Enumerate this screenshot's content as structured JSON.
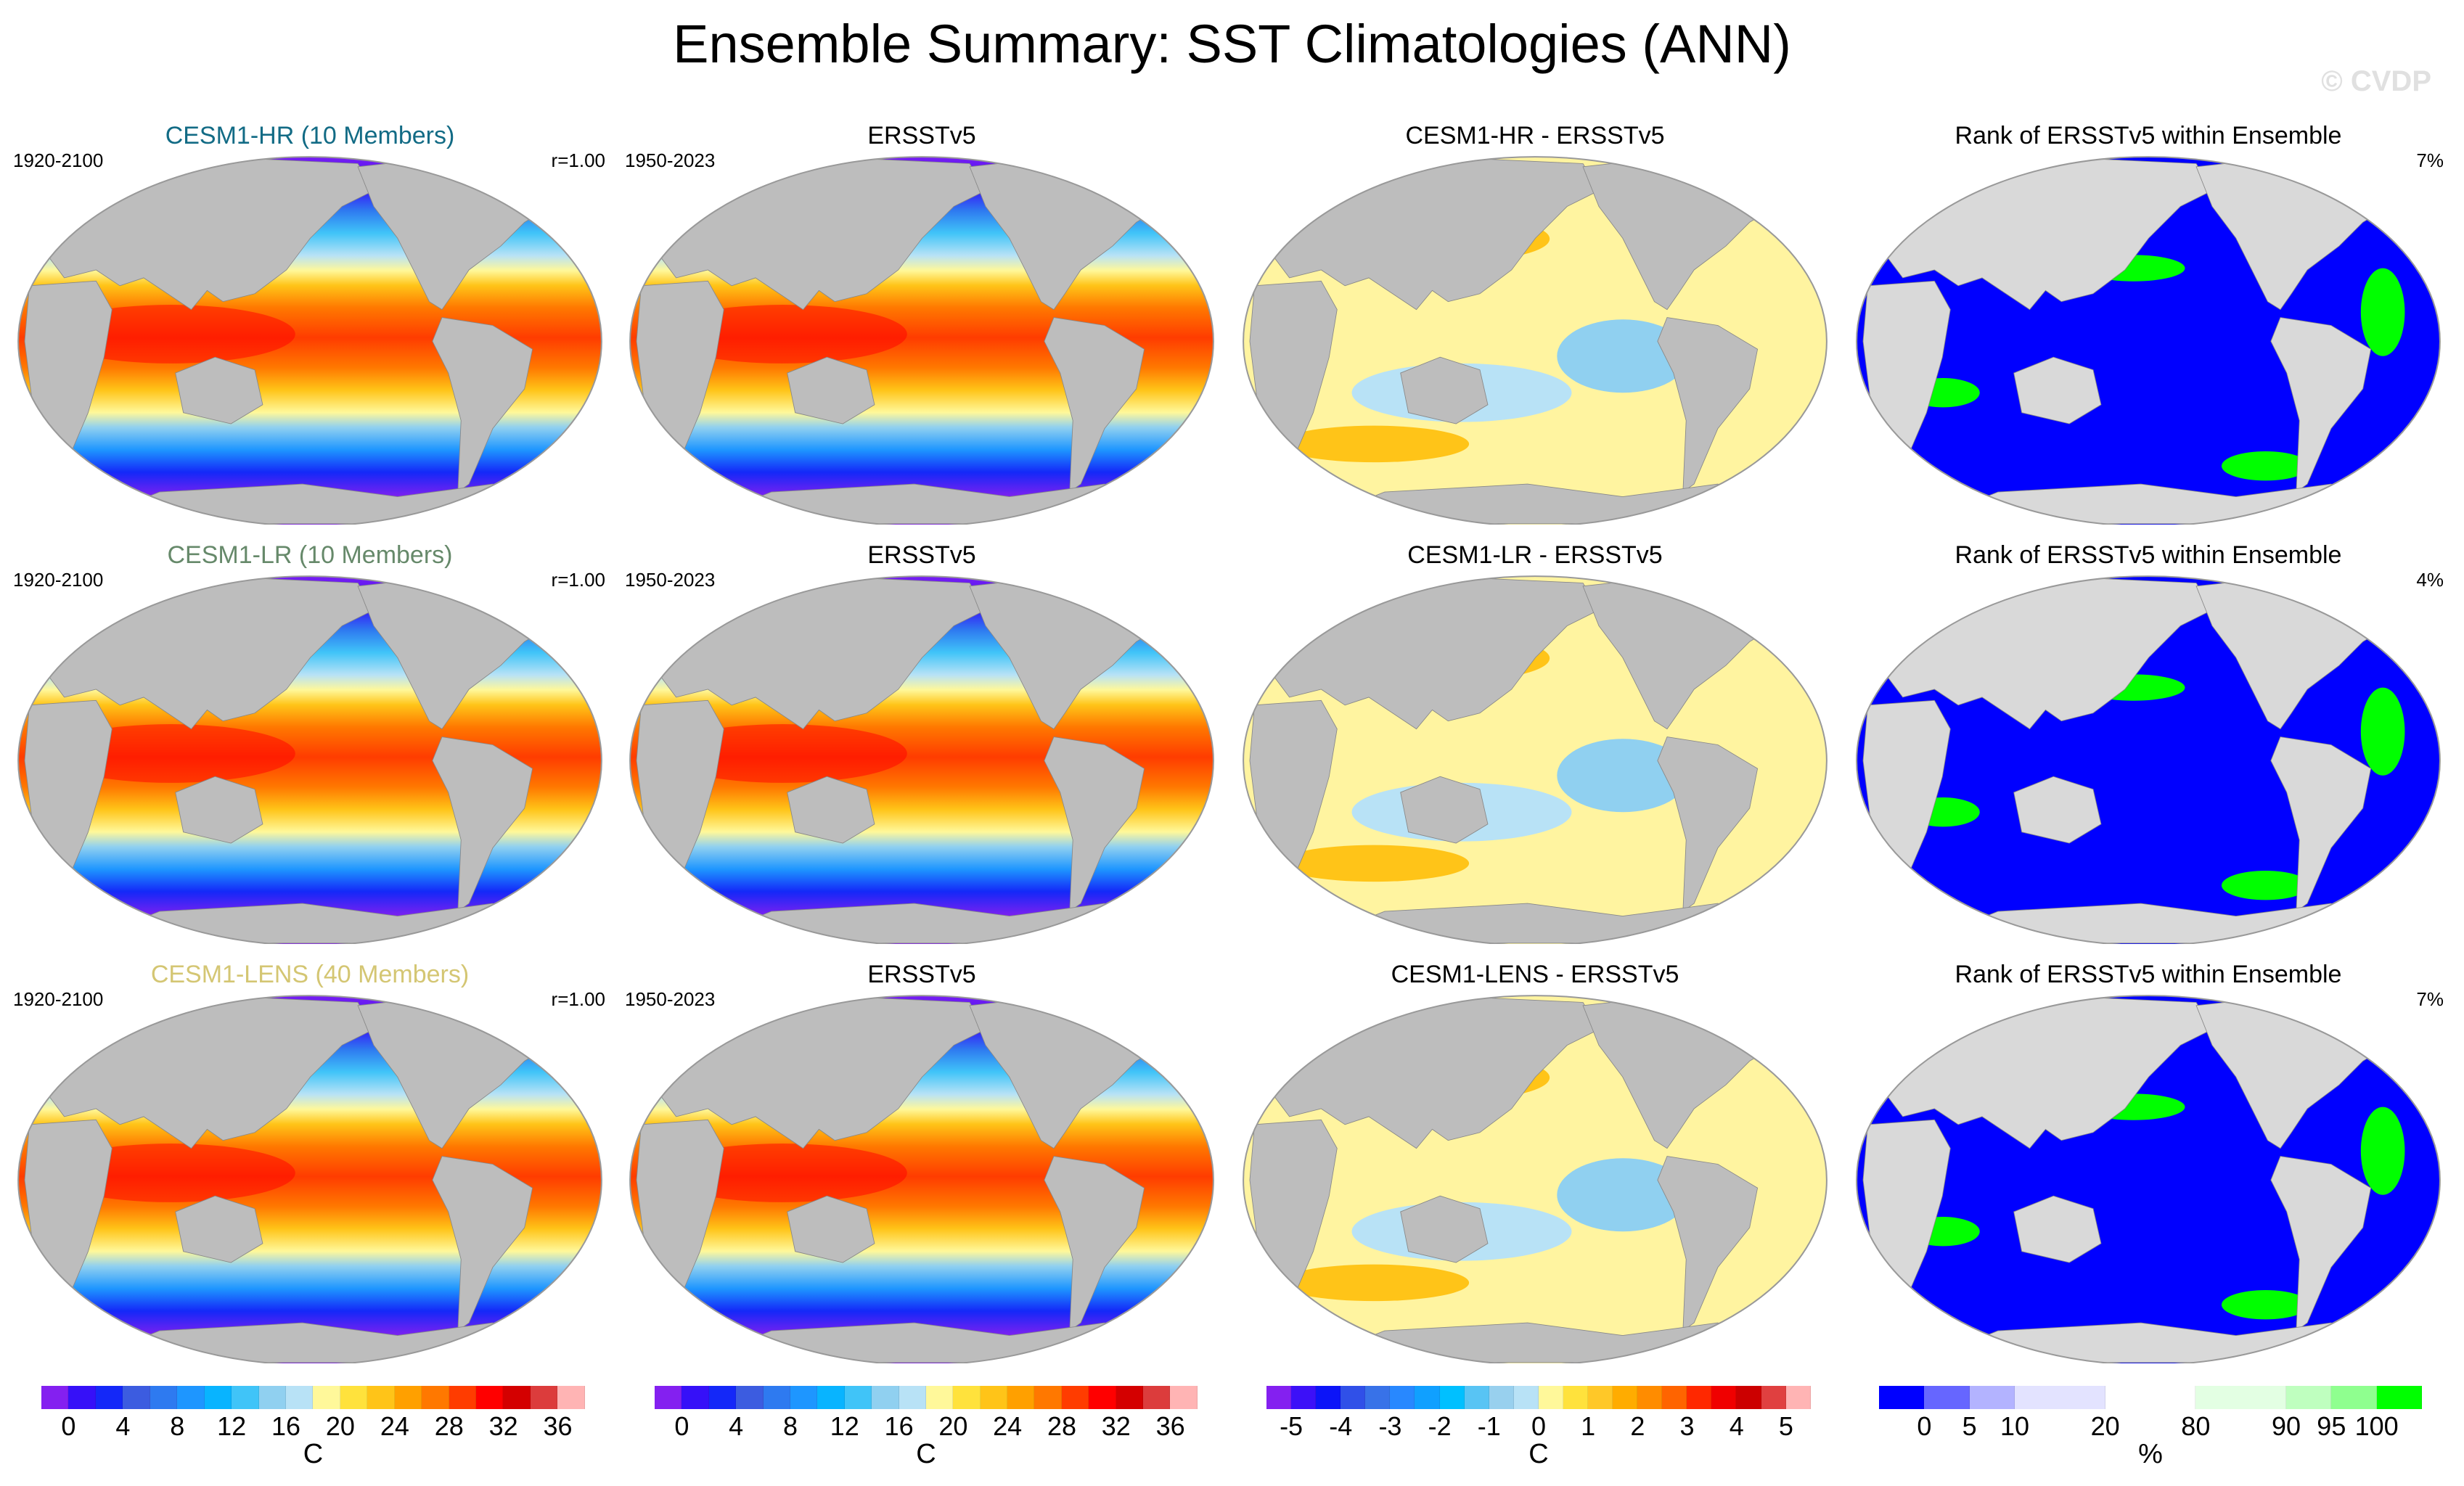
{
  "title": "Ensemble Summary: SST Climatologies (ANN)",
  "watermark": "© CVDP",
  "rows": [
    {
      "model_title": "CESM1-HR (10 Members)",
      "model_color": "#126b85",
      "period_model": "1920-2100",
      "r_value": "r=1.00",
      "obs_title": "ERSSTv5",
      "period_obs": "1950-2023",
      "diff_title": "CESM1-HR - ERSSTv5",
      "rank_title": "Rank of ERSSTv5 within Ensemble",
      "rank_pct": "7%"
    },
    {
      "model_title": "CESM1-LR (10 Members)",
      "model_color": "#66896a",
      "period_model": "1920-2100",
      "r_value": "r=1.00",
      "obs_title": "ERSSTv5",
      "period_obs": "1950-2023",
      "diff_title": "CESM1-LR - ERSSTv5",
      "rank_title": "Rank of ERSSTv5 within Ensemble",
      "rank_pct": "4%"
    },
    {
      "model_title": "CESM1-LENS (40 Members)",
      "model_color": "#d4c673",
      "period_model": "1920-2100",
      "r_value": "r=1.00",
      "obs_title": "ERSSTv5",
      "period_obs": "1950-2023",
      "diff_title": "CESM1-LENS - ERSSTv5",
      "rank_title": "Rank of ERSSTv5 within Ensemble",
      "rank_pct": "7%"
    }
  ],
  "chart_data": {
    "type": "heatmap",
    "colorbars": [
      {
        "name": "model-sst",
        "unit": "C",
        "ticks": [
          "0",
          "4",
          "8",
          "12",
          "16",
          "20",
          "24",
          "28",
          "32",
          "36"
        ],
        "colors": [
          "#8420f0",
          "#3610f8",
          "#1428f8",
          "#3c5ce0",
          "#2e7af0",
          "#1e96ff",
          "#08b4ff",
          "#40c4f8",
          "#90d0f0",
          "#b8e2f6",
          "#fff89a",
          "#ffe23c",
          "#ffc418",
          "#ffa000",
          "#ff7800",
          "#ff3c00",
          "#ff0000",
          "#d40000",
          "#dc3c3c",
          "#ffb4b4"
        ]
      },
      {
        "name": "obs-sst",
        "unit": "C",
        "ticks": [
          "0",
          "4",
          "8",
          "12",
          "16",
          "20",
          "24",
          "28",
          "32",
          "36"
        ],
        "colors": [
          "#8420f0",
          "#3610f8",
          "#1428f8",
          "#3c5ce0",
          "#2e7af0",
          "#1e96ff",
          "#08b4ff",
          "#40c4f8",
          "#90d0f0",
          "#b8e2f6",
          "#fff89a",
          "#ffe23c",
          "#ffc418",
          "#ffa000",
          "#ff7800",
          "#ff3c00",
          "#ff0000",
          "#d40000",
          "#dc3c3c",
          "#ffb4b4"
        ]
      },
      {
        "name": "difference",
        "unit": "C",
        "ticks": [
          "-5",
          "-4",
          "-3",
          "-2",
          "-1",
          "0",
          "1",
          "2",
          "3",
          "4",
          "5"
        ],
        "colors": [
          "#8420f0",
          "#3c10f8",
          "#0c14f8",
          "#3050e8",
          "#3872e8",
          "#2888ff",
          "#10a0ff",
          "#00c0ff",
          "#58c4f4",
          "#98d0ee",
          "#b8e2f6",
          "#fff89a",
          "#ffe23c",
          "#ffc828",
          "#ffac00",
          "#ff8c00",
          "#ff6400",
          "#ff2800",
          "#f00000",
          "#cc0000",
          "#e04040",
          "#ffb4b4"
        ]
      },
      {
        "name": "rank",
        "unit": "%",
        "ticks": [
          "0",
          "5",
          "10",
          "20",
          "80",
          "90",
          "95",
          "100"
        ],
        "colors": [
          "#0000ff",
          "#6666ff",
          "#b3b3ff",
          "#e3e3ff",
          "#ffffff",
          "#e3ffe3",
          "#bfffbf",
          "#8fff8f",
          "#00ff00"
        ],
        "weights": [
          1,
          1,
          1,
          2,
          2,
          2,
          1,
          1,
          1
        ]
      }
    ]
  }
}
